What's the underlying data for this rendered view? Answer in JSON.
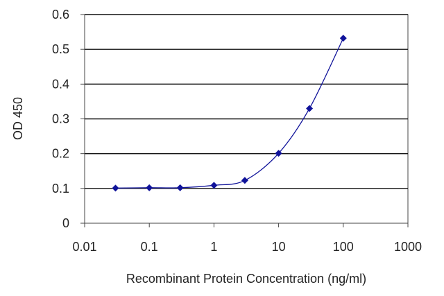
{
  "chart_data": {
    "type": "line",
    "title": "",
    "xlabel": "Recombinant Protein Concentration (ng/ml)",
    "ylabel": "OD 450",
    "x_scale": "log",
    "xlim": [
      0.01,
      1000
    ],
    "ylim": [
      0,
      0.6
    ],
    "x_ticks": [
      "0.01",
      "0.1",
      "1",
      "10",
      "100",
      "1000"
    ],
    "y_ticks": [
      "0",
      "0.1",
      "0.2",
      "0.3",
      "0.4",
      "0.5",
      "0.6"
    ],
    "grid": "horizontal",
    "legend": "none",
    "series": [
      {
        "x": [
          0.03,
          0.1,
          0.3,
          1,
          3,
          10,
          30,
          100
        ],
        "y": [
          0.101,
          0.102,
          0.102,
          0.109,
          0.123,
          0.201,
          0.33,
          0.532
        ]
      }
    ],
    "colors": {
      "series": "#10139a",
      "grid": "#111111",
      "frame": "#444444",
      "text": "#222222"
    }
  }
}
